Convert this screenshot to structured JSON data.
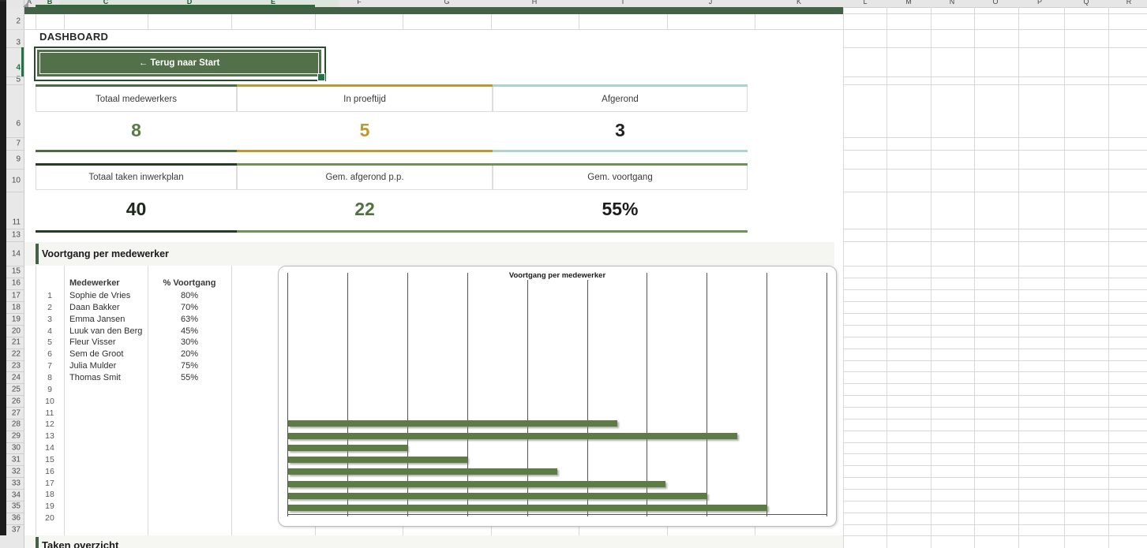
{
  "sheet": {
    "column_headers": [
      "A",
      "B",
      "C",
      "D",
      "E",
      "F",
      "G",
      "H",
      "I",
      "J",
      "K",
      "L",
      "M",
      "N",
      "O",
      "P",
      "Q",
      "R"
    ],
    "selected_columns": [
      "B",
      "C",
      "D",
      "E"
    ],
    "row_numbers": [
      2,
      3,
      4,
      5,
      6,
      7,
      9,
      10,
      11,
      13,
      14,
      15,
      16,
      17,
      18,
      19,
      20,
      21,
      22,
      23,
      24,
      25,
      26,
      27,
      28,
      29,
      30,
      31,
      32,
      33,
      34,
      35,
      36,
      37
    ],
    "selected_row": 4
  },
  "dashboard": {
    "title": "DASHBOARD",
    "back_button_label": "← Terug naar Start",
    "kpis_row1": [
      {
        "label": "Totaal medewerkers",
        "value": "8",
        "accent": "#4d6a43",
        "value_color": "#5a7a48"
      },
      {
        "label": "In proeftijd",
        "value": "5",
        "accent": "#c09733",
        "value_color": "#bd9730"
      },
      {
        "label": "Afgerond",
        "value": "3",
        "accent": "#abd5c5",
        "value_color": "#222222"
      }
    ],
    "kpis_row2": [
      {
        "label": "Totaal taken inwerkplan",
        "value": "40",
        "accent": "#243c24",
        "value_color": "#1d271d"
      },
      {
        "label": "Gem. afgerond p.p.",
        "value": "22",
        "accent": "#6f9157",
        "value_color": "#51713f"
      },
      {
        "label": "Gem. voortgang",
        "value": "55%",
        "accent": "#6f9157",
        "value_color": "#1c1c1c"
      }
    ]
  },
  "section": {
    "title": "Voortgang per medewerker"
  },
  "table": {
    "columns": [
      "Medewerker",
      "% Voortgang"
    ],
    "rows": [
      {
        "n": "1",
        "name": "Sophie de Vries",
        "pct": "80%"
      },
      {
        "n": "2",
        "name": "Daan Bakker",
        "pct": "70%"
      },
      {
        "n": "3",
        "name": "Emma Jansen",
        "pct": "63%"
      },
      {
        "n": "4",
        "name": "Luuk van den Berg",
        "pct": "45%"
      },
      {
        "n": "5",
        "name": "Fleur Visser",
        "pct": "30%"
      },
      {
        "n": "6",
        "name": "Sem de Groot",
        "pct": "20%"
      },
      {
        "n": "7",
        "name": "Julia Mulder",
        "pct": "75%"
      },
      {
        "n": "8",
        "name": "Thomas Smit",
        "pct": "55%"
      }
    ],
    "empty_row_numbers": [
      "9",
      "10",
      "11",
      "12",
      "13",
      "14",
      "15",
      "16",
      "17",
      "18",
      "19",
      "20"
    ]
  },
  "chart_data": {
    "type": "bar",
    "orientation": "horizontal",
    "title": "Voortgang per medewerker",
    "categories": [
      "Sophie de Vries",
      "Daan Bakker",
      "Emma Jansen",
      "Luuk van den Berg",
      "Fleur Visser",
      "Sem de Groot",
      "Julia Mulder",
      "Thomas Smit"
    ],
    "values": [
      80,
      70,
      63,
      45,
      30,
      20,
      75,
      55
    ],
    "unit": "%",
    "xlim": [
      0,
      90
    ],
    "gridline_step": 10,
    "grid": "vertical-on",
    "axis_labels_visible": false,
    "legend": "none",
    "total_category_slots": 20,
    "bar_color": "#5d7b44"
  },
  "next_section": {
    "partial_title": "Taken overzicht"
  }
}
